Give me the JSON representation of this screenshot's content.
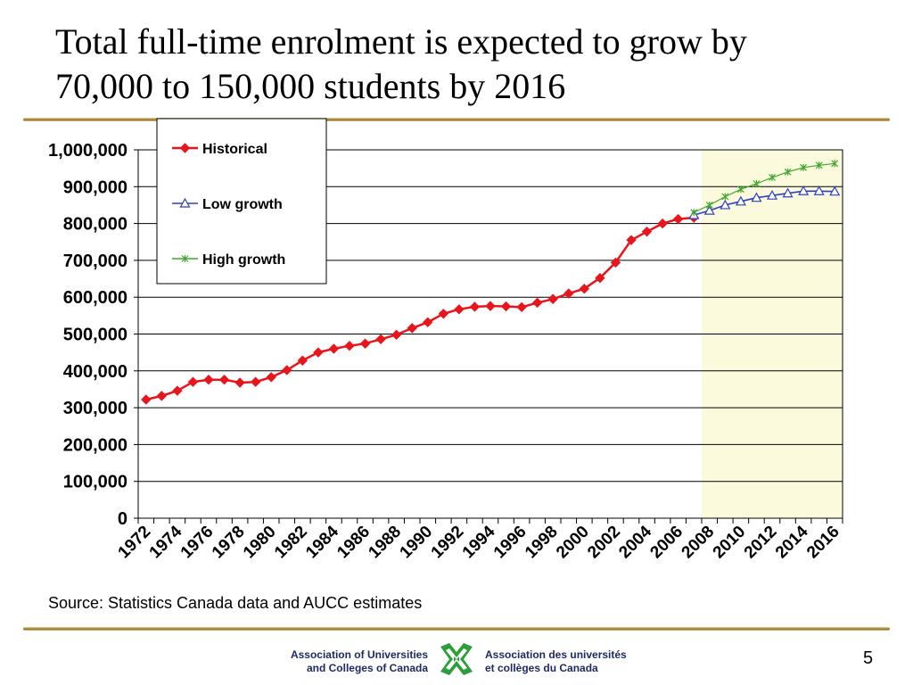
{
  "slide": {
    "title_line1": "Total full-time enrolment is expected to grow by",
    "title_line2": "70,000 to 150,000 students by 2016",
    "source": "Source: Statistics Canada data and AUCC estimates",
    "footer_left_line1": "Association of Universities",
    "footer_left_line2": "and Colleges of Canada",
    "footer_right_line1": "Association des universités",
    "footer_right_line2": "et collèges du Canada",
    "page_number": "5",
    "accent_color": "#a88838",
    "logo_icon": "aucc-logo-icon"
  },
  "chart_data": {
    "type": "line",
    "title": "",
    "xlabel": "",
    "ylabel": "",
    "xlim": [
      1972,
      2016
    ],
    "ylim": [
      0,
      1000000
    ],
    "y_ticks": [
      0,
      100000,
      200000,
      300000,
      400000,
      500000,
      600000,
      700000,
      800000,
      900000,
      1000000
    ],
    "y_tick_labels": [
      "0",
      "100,000",
      "200,000",
      "300,000",
      "400,000",
      "500,000",
      "600,000",
      "700,000",
      "800,000",
      "900,000",
      "1,000,000"
    ],
    "x_tick_labels": [
      "1972",
      "1974",
      "1976",
      "1978",
      "1980",
      "1982",
      "1984",
      "1986",
      "1988",
      "1990",
      "1992",
      "1994",
      "1996",
      "1998",
      "2000",
      "2002",
      "2004",
      "2006",
      "2008",
      "2010",
      "2012",
      "2014",
      "2016"
    ],
    "grid": "horizontal",
    "legend_position": "top-left",
    "projection_shading": {
      "from": 2007.5,
      "to": 2016.5,
      "color": "#fbfadc"
    },
    "series": [
      {
        "name": "Historical",
        "color": "#e8161c",
        "marker": "diamond",
        "x": [
          1972,
          1973,
          1974,
          1975,
          1976,
          1977,
          1978,
          1979,
          1980,
          1981,
          1982,
          1983,
          1984,
          1985,
          1986,
          1987,
          1988,
          1989,
          1990,
          1991,
          1992,
          1993,
          1994,
          1995,
          1996,
          1997,
          1998,
          1999,
          2000,
          2001,
          2002,
          2003,
          2004,
          2005,
          2006,
          2007
        ],
        "values": [
          322000,
          332000,
          346000,
          370000,
          376000,
          376000,
          368000,
          370000,
          383000,
          402000,
          428000,
          450000,
          460000,
          468000,
          474000,
          486000,
          498000,
          516000,
          532000,
          555000,
          567000,
          574000,
          576000,
          575000,
          573000,
          585000,
          595000,
          610000,
          623000,
          652000,
          694000,
          755000,
          778000,
          800000,
          812000,
          816000
        ]
      },
      {
        "name": "Low growth",
        "color": "#2f3fc4",
        "marker": "triangle-open",
        "x": [
          2007,
          2008,
          2009,
          2010,
          2011,
          2012,
          2013,
          2014,
          2015,
          2016
        ],
        "values": [
          823000,
          835000,
          850000,
          860000,
          870000,
          876000,
          882000,
          888000,
          888000,
          887000
        ]
      },
      {
        "name": "High growth",
        "color": "#3fa832",
        "marker": "asterisk",
        "x": [
          2007,
          2008,
          2009,
          2010,
          2011,
          2012,
          2013,
          2014,
          2015,
          2016
        ],
        "values": [
          830000,
          850000,
          873000,
          893000,
          908000,
          925000,
          940000,
          952000,
          958000,
          963000
        ]
      }
    ]
  }
}
